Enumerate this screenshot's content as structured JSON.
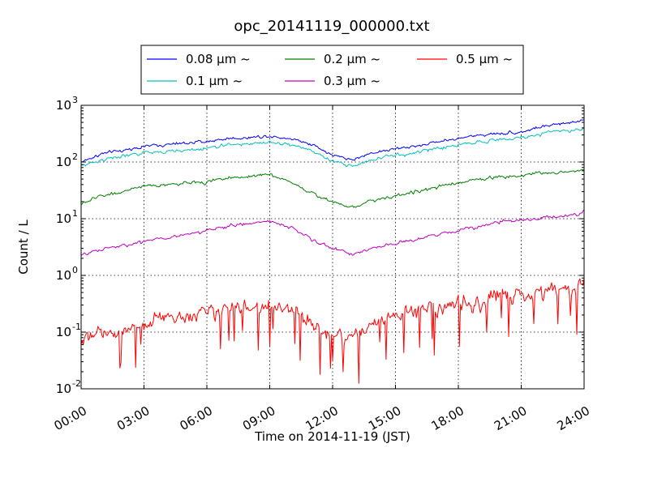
{
  "chart_data": {
    "type": "line",
    "title": "opc_20141119_000000.txt",
    "xlabel": "Time on 2014-11-19 (JST)",
    "ylabel": "Count / L",
    "yscale": "log",
    "ylim": [
      0.01,
      1000
    ],
    "xlim_hours": [
      0,
      24
    ],
    "grid": true,
    "legend_location": "top-center, outside plot",
    "x_tick_labels": [
      "00:00",
      "03:00",
      "06:00",
      "09:00",
      "12:00",
      "15:00",
      "18:00",
      "21:00",
      "24:00"
    ],
    "y_tick_labels": [
      {
        "base": "10",
        "exp": "-2"
      },
      {
        "base": "10",
        "exp": "-1"
      },
      {
        "base": "10",
        "exp": "0"
      },
      {
        "base": "10",
        "exp": "1"
      },
      {
        "base": "10",
        "exp": "2"
      },
      {
        "base": "10",
        "exp": "3"
      }
    ],
    "x_hours": [
      0,
      1,
      2,
      3,
      4,
      5,
      6,
      7,
      8,
      9,
      10,
      11,
      12,
      13,
      14,
      15,
      16,
      17,
      18,
      19,
      20,
      21,
      22,
      23,
      24
    ],
    "series": [
      {
        "name": "0.08 μm ~",
        "color": "#0000ff",
        "values": [
          100,
          140,
          160,
          190,
          200,
          215,
          230,
          260,
          270,
          290,
          260,
          210,
          130,
          110,
          150,
          170,
          190,
          230,
          260,
          300,
          320,
          340,
          420,
          470,
          560
        ]
      },
      {
        "name": "0.1 μm ~",
        "color": "#00bfbf",
        "values": [
          85,
          110,
          125,
          145,
          150,
          160,
          175,
          200,
          210,
          225,
          200,
          160,
          100,
          85,
          115,
          130,
          145,
          175,
          200,
          230,
          250,
          265,
          320,
          350,
          390
        ]
      },
      {
        "name": "0.2 μm ~",
        "color": "#008000",
        "values": [
          18,
          26,
          30,
          36,
          40,
          42,
          45,
          52,
          56,
          60,
          45,
          28,
          20,
          16,
          22,
          25,
          30,
          36,
          42,
          50,
          55,
          58,
          65,
          65,
          75
        ]
      },
      {
        "name": "0.3 μm ~",
        "color": "#bf00bf",
        "values": [
          2.2,
          2.9,
          3.3,
          4.0,
          4.5,
          5.3,
          6.2,
          7.3,
          8.2,
          9.2,
          7.2,
          4.2,
          3.0,
          2.4,
          3.0,
          3.6,
          4.3,
          5.2,
          6.2,
          7.6,
          8.6,
          9.2,
          10.5,
          11,
          13
        ]
      },
      {
        "name": "0.5 μm ~",
        "color": "#ff0000",
        "values": [
          0.07,
          0.09,
          0.11,
          0.14,
          0.17,
          0.2,
          0.22,
          0.25,
          0.27,
          0.28,
          0.25,
          0.14,
          0.08,
          0.09,
          0.14,
          0.19,
          0.24,
          0.28,
          0.32,
          0.36,
          0.42,
          0.45,
          0.5,
          0.55,
          0.75
        ]
      }
    ]
  }
}
